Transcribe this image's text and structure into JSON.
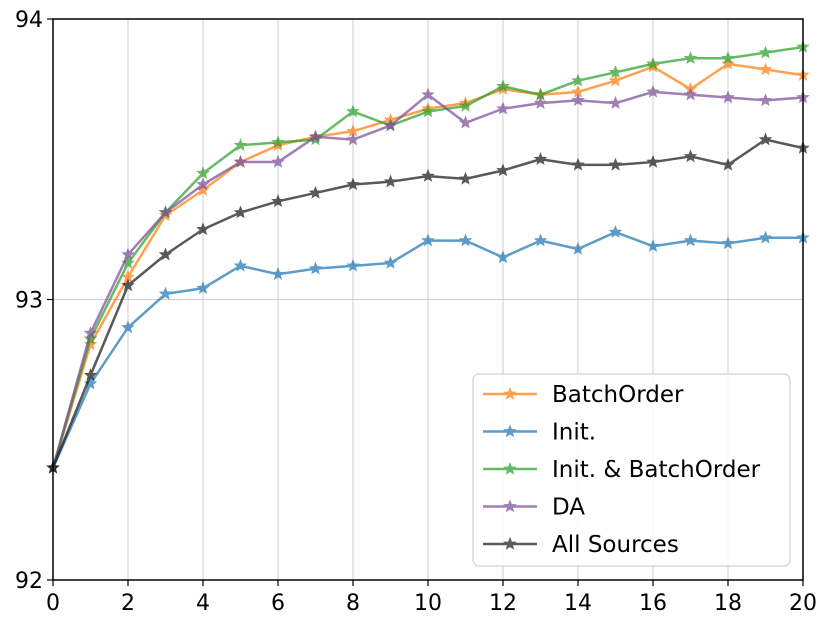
{
  "chart_data": {
    "type": "line",
    "title": "",
    "xlabel": "",
    "ylabel": "",
    "xlim": [
      0,
      20
    ],
    "ylim": [
      92,
      94
    ],
    "xticks": [
      0,
      2,
      4,
      6,
      8,
      10,
      12,
      14,
      16,
      18,
      20
    ],
    "yticks": [
      92,
      93,
      94
    ],
    "xtick_labels": [
      "0",
      "2",
      "4",
      "6",
      "8",
      "10",
      "12",
      "14",
      "16",
      "18",
      "20"
    ],
    "ytick_labels": [
      "92",
      "93",
      "94"
    ],
    "grid": true,
    "legend_position": "bottom-right",
    "marker": "star",
    "x": [
      0,
      1,
      2,
      3,
      4,
      5,
      6,
      7,
      8,
      9,
      10,
      11,
      12,
      13,
      14,
      15,
      16,
      17,
      18,
      19,
      20
    ],
    "series": [
      {
        "name": "BatchOrder",
        "color": "#ff7f0e",
        "values": [
          92.4,
          92.84,
          93.08,
          93.3,
          93.39,
          93.49,
          93.55,
          93.58,
          93.6,
          93.64,
          93.68,
          93.7,
          93.75,
          93.73,
          93.74,
          93.78,
          93.83,
          93.75,
          93.84,
          93.82,
          93.8
        ]
      },
      {
        "name": "Init.",
        "color": "#1f77b4",
        "values": [
          92.4,
          92.7,
          92.9,
          93.02,
          93.04,
          93.12,
          93.09,
          93.11,
          93.12,
          93.13,
          93.21,
          93.21,
          93.15,
          93.21,
          93.18,
          93.24,
          93.19,
          93.21,
          93.2,
          93.22,
          93.22
        ]
      },
      {
        "name": "Init. & BatchOrder",
        "color": "#2ca02c",
        "values": [
          92.4,
          92.86,
          93.13,
          93.31,
          93.45,
          93.55,
          93.56,
          93.57,
          93.67,
          93.62,
          93.67,
          93.69,
          93.76,
          93.73,
          93.78,
          93.81,
          93.84,
          93.86,
          93.86,
          93.88,
          93.9
        ]
      },
      {
        "name": "DA",
        "color": "#7b4e99",
        "values": [
          92.4,
          92.88,
          93.16,
          93.31,
          93.41,
          93.49,
          93.49,
          93.58,
          93.57,
          93.62,
          93.73,
          93.63,
          93.68,
          93.7,
          93.71,
          93.7,
          93.74,
          93.73,
          93.72,
          93.71,
          93.72
        ]
      },
      {
        "name": "All Sources",
        "color": "#1a1a1a",
        "values": [
          92.4,
          92.73,
          93.05,
          93.16,
          93.25,
          93.31,
          93.35,
          93.38,
          93.41,
          93.42,
          93.44,
          93.43,
          93.46,
          93.5,
          93.48,
          93.48,
          93.49,
          93.51,
          93.48,
          93.57,
          93.54
        ]
      }
    ]
  }
}
